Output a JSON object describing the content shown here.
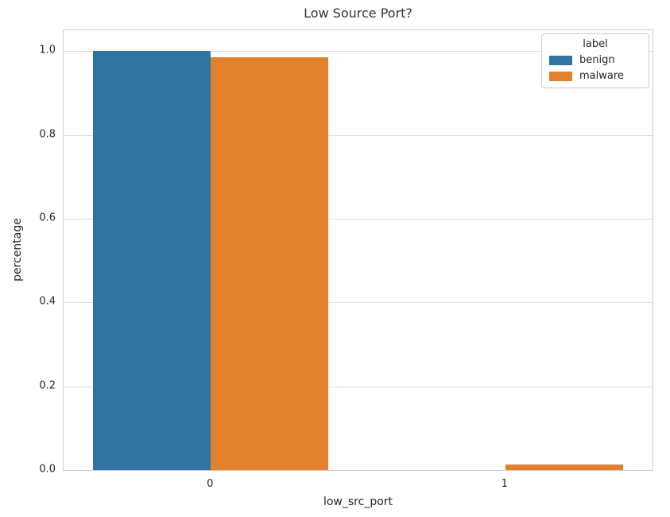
{
  "colors": {
    "benign_blue": "#3274a1",
    "malware_orange": "#e1812c",
    "gridline": "#dcdcdc",
    "spine": "#cccccc",
    "text": "#262626"
  },
  "chart_data": {
    "type": "bar",
    "title": "Low Source Port?",
    "xlabel": "low_src_port",
    "ylabel": "percentage",
    "categories": [
      "0",
      "1"
    ],
    "series": [
      {
        "name": "benign",
        "color": "#3274a1",
        "values": [
          1.0,
          0.0
        ]
      },
      {
        "name": "malware",
        "color": "#e1812c",
        "values": [
          0.985,
          0.013
        ]
      }
    ],
    "ylim": [
      0,
      1.05
    ],
    "yticks": [
      0.0,
      0.2,
      0.4,
      0.6,
      0.8,
      1.0
    ],
    "grid": true,
    "legend": {
      "title": "label",
      "entries": [
        "benign",
        "malware"
      ],
      "position": "upper right"
    }
  }
}
